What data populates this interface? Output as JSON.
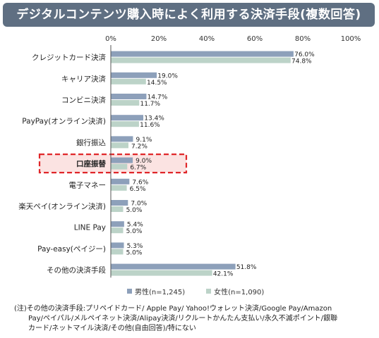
{
  "title": "デジタルコンテンツ購入時によく利用する決済手段(複数回答)",
  "colors": {
    "male": "#8da0ba",
    "female": "#bcd3c8",
    "highlight_border": "#e0272a",
    "highlight_fill": "#fbe3e2",
    "title_bg": "#5f6f82"
  },
  "chart_data": {
    "type": "bar",
    "orientation": "horizontal",
    "categories": [
      "クレジットカード決済",
      "キャリア決済",
      "コンビニ決済",
      "PayPay(オンライン決済)",
      "銀行振込",
      "口座振替",
      "電子マネー",
      "楽天ペイ(オンライン決済)",
      "LINE Pay",
      "Pay-easy(ペイジー)",
      "その他の決済手段"
    ],
    "series": [
      {
        "name": "男性(n=1,245)",
        "values": [
          76.0,
          19.0,
          14.7,
          13.4,
          9.1,
          9.0,
          7.6,
          7.0,
          5.4,
          5.3,
          51.8
        ],
        "labels": [
          "76.0%",
          "19.0%",
          "14.7%",
          "13.4%",
          "9.1%",
          "9.0%",
          "7.6%",
          "7.0%",
          "5.4%",
          "5.3%",
          "51.8%"
        ]
      },
      {
        "name": "女性(n=1,090)",
        "values": [
          74.8,
          14.5,
          11.7,
          11.6,
          7.2,
          6.7,
          6.5,
          5.0,
          5.0,
          5.0,
          42.1
        ],
        "labels": [
          "74.8%",
          "14.5%",
          "11.7%",
          "11.6%",
          "7.2%",
          "6.7%",
          "6.5%",
          "5.0%",
          "5.0%",
          "5.0%",
          "42.1%"
        ]
      }
    ],
    "xlim": [
      0,
      100
    ],
    "xticks": [
      0,
      20,
      40,
      60,
      80,
      100
    ],
    "xtick_labels": [
      "0%",
      "20%",
      "40%",
      "60%",
      "80%",
      "100%"
    ],
    "highlighted_category": "口座振替",
    "grid": false,
    "legend_position": "bottom"
  },
  "note_line1": "(注)その他の決済手段:プリペイドカード/ Apple Pay/ Yahoo!ウォレット決済/Google Pay/Amazon",
  "note_line2": "Pay/ペイパル/メルペイネット決済/Alipay決済/リクルートかんたん支払い/永久不滅ポイント/銀聯",
  "note_line3": "カード/ネットマイル決済/その他(自由回答)/特にない"
}
